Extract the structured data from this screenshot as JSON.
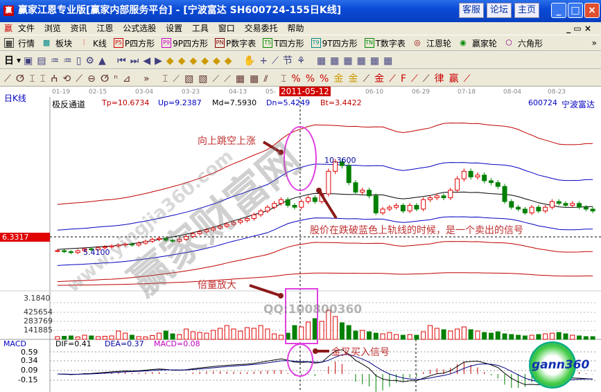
{
  "window": {
    "title": "赢家江恩专业版[赢家内部服务平台] - [宁波富达   SH600724-155日K线]",
    "buttons": [
      "客服",
      "论坛",
      "主页"
    ],
    "logo": "赢"
  },
  "menu": {
    "logo": "赢",
    "items": [
      "文件",
      "浏览",
      "资讯",
      "江恩",
      "公式选股",
      "设置",
      "工具",
      "窗口",
      "交易委托",
      "帮助"
    ]
  },
  "toolbar1": [
    {
      "icon": "P5",
      "label": "P四方形"
    },
    {
      "icon": "P9",
      "label": "9P四方形"
    },
    {
      "icon": "PN",
      "label": "P数字表"
    },
    {
      "icon": "T5",
      "label": "T四方形"
    },
    {
      "icon": "T9",
      "label": "9T四方形"
    },
    {
      "icon": "TN",
      "label": "T数字表"
    }
  ],
  "toolbar1_main": [
    {
      "label": "行情"
    },
    {
      "label": "板块"
    },
    {
      "label": "K线"
    }
  ],
  "toolbar1_tail": [
    {
      "label": "江恩轮"
    },
    {
      "label": "赢家轮"
    },
    {
      "label": "六角形"
    }
  ],
  "toolbar2": {
    "period": "日"
  },
  "dates": [
    "01-19",
    "02-15",
    "03-04",
    "03-23",
    "04-13",
    "05-",
    "06-10",
    "06-29",
    "07-18",
    "08-04",
    "08-23"
  ],
  "cursor_date": "2011-05-12",
  "pane": {
    "label": "日K线",
    "indicator": "极反通道",
    "tp": "Tp=10.6734",
    "up": "Up=9.2387",
    "md": "Md=7.5930",
    "dn": "Dn=5.4249",
    "bt": "Bt=3.4422",
    "code": "600724",
    "name": "宁波富达",
    "price_marker": "6.3317",
    "high_label": "10.3600",
    "low_label": "5.4100"
  },
  "volume": {
    "labels": [
      "3.1840",
      "425654",
      "283769",
      "141885"
    ]
  },
  "macd": {
    "label": "MACD",
    "dif": "DIF=0.41",
    "dea": "DEA=0.37",
    "macd": "MACD=0.08",
    "ticks": [
      "0.59",
      "0.34",
      "0.09",
      "-0.15"
    ]
  },
  "annotations": {
    "gap_up": "向上跳空上涨",
    "sell": "股价在跌破蓝色上轨线的时候，是一个卖出的信号",
    "volume": "倍量放大",
    "buy": "金叉买入信号"
  },
  "watermark": {
    "site": "赢家财富网",
    "url": "www.yingjia360.com",
    "qq": "QQ:100800360",
    "logo": "gann360"
  },
  "colors": {
    "up": "#e00000",
    "down": "#008000",
    "band_outer": "#c00000",
    "band_inner": "#0000c0",
    "annotation": "#c03030",
    "highlight": "#e040e0"
  },
  "closes": [
    5.6,
    5.55,
    5.5,
    5.6,
    5.7,
    5.65,
    5.75,
    5.8,
    5.85,
    5.9,
    5.95,
    5.9,
    6.0,
    6.1,
    6.2,
    6.25,
    6.15,
    6.1,
    6.2,
    6.35,
    6.5,
    6.6,
    6.7,
    6.8,
    6.9,
    7.0,
    7.1,
    7.2,
    7.3,
    7.5,
    7.7,
    7.9,
    8.1,
    8.3,
    8.0,
    7.9,
    8.2,
    8.4,
    8.2,
    8.6,
    9.8,
    10.3,
    10.1,
    9.2,
    8.7,
    8.8,
    8.5,
    7.6,
    7.8,
    7.9,
    8.0,
    7.7,
    8.0,
    7.8,
    8.3,
    8.4,
    8.5,
    8.4,
    8.8,
    9.4,
    9.8,
    9.5,
    9.6,
    9.3,
    9.2,
    9.0,
    8.2,
    7.9,
    7.8,
    7.6,
    7.9,
    7.7,
    7.9,
    8.2,
    8.1,
    8.0,
    8.1,
    7.9,
    7.8,
    7.7
  ],
  "volumes": [
    40,
    45,
    50,
    35,
    60,
    50,
    40,
    45,
    50,
    120,
    90,
    60,
    40,
    35,
    55,
    90,
    120,
    80,
    70,
    150,
    110,
    100,
    90,
    130,
    160,
    200,
    150,
    120,
    170,
    160,
    200,
    150,
    80,
    60,
    90,
    200,
    180,
    250,
    300,
    260,
    420,
    330,
    240,
    200,
    120,
    130,
    110,
    90,
    80,
    100,
    70,
    60,
    70,
    60,
    110,
    200,
    160,
    140,
    120,
    150,
    180,
    140,
    120,
    100,
    90,
    110,
    80,
    70,
    60,
    50,
    60,
    70,
    80,
    90,
    100,
    80,
    60,
    50,
    40,
    40
  ]
}
